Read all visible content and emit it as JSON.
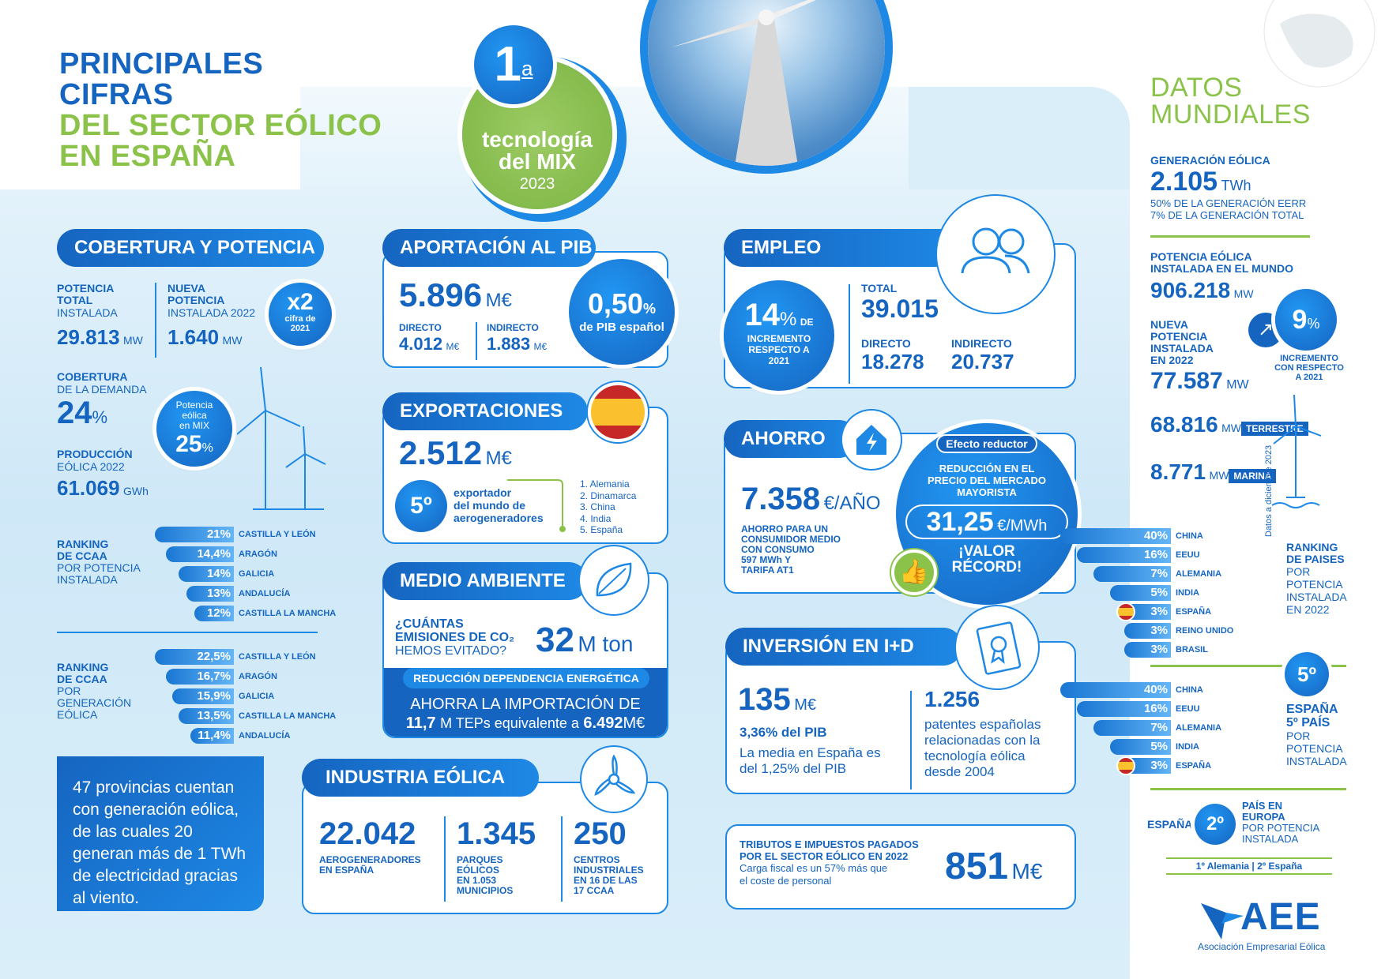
{
  "title": {
    "l1": "PRINCIPALES",
    "l2": "CIFRAS",
    "l3": "DEL SECTOR EÓLICO",
    "l4": "EN ESPAÑA"
  },
  "badge": {
    "num": "1",
    "sup": "a",
    "l1": "tecnología",
    "l2": "del MIX",
    "year": "2023"
  },
  "cobertura": {
    "pill": "COBERTURA Y POTENCIA",
    "pt_l1": "POTENCIA",
    "pt_l2": "TOTAL",
    "pt_l3": "INSTALADA",
    "pt_val": "29.813",
    "pt_unit": "MW",
    "np_l1": "NUEVA",
    "np_l2": "POTENCIA",
    "np_l3": "INSTALADA 2022",
    "np_val": "1.640",
    "np_unit": "MW",
    "x2": "x2",
    "x2_l1": "cifra de",
    "x2_l2": "2021",
    "cd_l1": "COBERTURA",
    "cd_l2": "DE LA DEMANDA",
    "cd_val": "24",
    "cd_unit": "%",
    "pe_l1": "Potencia",
    "pe_l2": "eólica",
    "pe_l3": "en MIX",
    "pe_val": "25",
    "pe_unit": "%",
    "pr_l1": "PRODUCCIÓN",
    "pr_l2": "EÓLICA 2022",
    "pr_val": "61.069",
    "pr_unit": "GWh"
  },
  "rank_pot": {
    "l1": "RANKING",
    "l2": "DE CCAA",
    "l3": "POR POTENCIA",
    "l4": "INSTALADA",
    "items": [
      {
        "v": "21%",
        "n": "CASTILLA Y LEÓN",
        "f": 1.0
      },
      {
        "v": "14,4%",
        "n": "ARAGÓN",
        "f": 0.86
      },
      {
        "v": "14%",
        "n": "GALICIA",
        "f": 0.7
      },
      {
        "v": "13%",
        "n": "ANDALUCÍA",
        "f": 0.6
      },
      {
        "v": "12%",
        "n": "CASTILLA LA MANCHA",
        "f": 0.5
      }
    ]
  },
  "rank_gen": {
    "l1": "RANKING",
    "l2": "DE CCAA",
    "l3": "POR",
    "l4": "GENERACIÓN",
    "l5": "EÓLICA",
    "items": [
      {
        "v": "22,5%",
        "n": "CASTILLA Y LEÓN",
        "f": 1.0
      },
      {
        "v": "16,7%",
        "n": "ARAGÓN",
        "f": 0.86
      },
      {
        "v": "15,9%",
        "n": "GALICIA",
        "f": 0.78
      },
      {
        "v": "13,5%",
        "n": "CASTILLA LA MANCHA",
        "f": 0.7
      },
      {
        "v": "11,4%",
        "n": "ANDALUCÍA",
        "f": 0.55
      }
    ]
  },
  "provincias": {
    "text": "47 provincias cuentan con generación eólica, de las cuales 20 generan más de 1 TWh de electricidad gracias al viento."
  },
  "pib": {
    "pill": "APORTACIÓN AL PIB",
    "val": "5.896",
    "unit": "M€",
    "d_l": "DIRECTO",
    "d_v": "4.012",
    "d_u": "M€",
    "i_l": "INDIRECTO",
    "i_v": "1.883",
    "i_u": "M€",
    "pct": "0,50",
    "pct_u": "%",
    "pct_l": "de PIB español"
  },
  "export": {
    "pill": "EXPORTACIONES",
    "val": "2.512",
    "unit": "M€",
    "rank": "5º",
    "r_l1": "exportador",
    "r_l2": "del mundo de",
    "r_l3": "aerogeneradores",
    "list": [
      "1. Alemania",
      "2. Dinamarca",
      "3. China",
      "4. India",
      "5. España"
    ]
  },
  "medio": {
    "pill": "MEDIO AMBIENTE",
    "q1": "¿CUÁNTAS",
    "q2": "EMISIONES DE CO₂",
    "q3": "HEMOS EVITADO?",
    "val": "32",
    "unit": "M ton",
    "red": "REDUCCIÓN DEPENDENCIA ENERGÉTICA",
    "ah1": "AHORRA LA IMPORTACIÓN DE",
    "ah_v1": "11,7",
    "ah_m": "M TEPs equivalente a",
    "ah_v2": "6.492",
    "ah_u": "M€"
  },
  "industria": {
    "pill": "INDUSTRIA EÓLICA",
    "a_v": "22.042",
    "a_l1": "AEROGENERADORES",
    "a_l2": "EN ESPAÑA",
    "p_v": "1.345",
    "p_l1": "PARQUES",
    "p_l2": "EÓLICOS",
    "p_l3": "EN 1.053",
    "p_l4": "MUNICIPIOS",
    "c_v": "250",
    "c_l1": "CENTROS",
    "c_l2": "INDUSTRIALES",
    "c_l3": "EN 16 DE LAS",
    "c_l4": "17 CCAA"
  },
  "empleo": {
    "pill": "EMPLEO",
    "pct": "14",
    "pct_u": "%",
    "pct_de": "DE",
    "c_l1": "INCREMENTO",
    "c_l2": "RESPECTO A",
    "c_l3": "2021",
    "t_l": "TOTAL",
    "t_v": "39.015",
    "d_l": "DIRECTO",
    "d_v": "18.278",
    "i_l": "INDIRECTO",
    "i_v": "20.737"
  },
  "ahorro": {
    "pill": "AHORRO",
    "val": "7.358",
    "unit": "€/AÑO",
    "l1": "AHORRO PARA UN",
    "l2": "CONSUMIDOR MEDIO",
    "l3": "CON CONSUMO",
    "l4": "597 MWh Y",
    "l5": "TARIFA AT1",
    "ef": "Efecto reductor",
    "r1": "REDUCCIÓN EN EL",
    "r2": "PRECIO DEL MERCADO",
    "r3": "MAYORISTA",
    "rv": "31,25",
    "ru": "€/MWh",
    "rec1": "¡VALOR",
    "rec2": "RÉCORD!"
  },
  "id": {
    "pill": "INVERSIÓN EN I+D",
    "val": "135",
    "unit": "M€",
    "pct": "3,36% del PIB",
    "m1": "La media en España es",
    "m2": "del 1,25% del PIB",
    "pat_v": "1.256",
    "p1": "patentes españolas",
    "p2": "relacionadas con la",
    "p3": "tecnología eólica",
    "p4": "desde 2004"
  },
  "tributos": {
    "t1": "TRIBUTOS E IMPUESTOS PAGADOS",
    "t2": "POR EL SECTOR EÓLICO EN 2022",
    "c1": "Carga fiscal es un 57% más que",
    "c2": "el coste de personal",
    "val": "851",
    "unit": "M€"
  },
  "mundo": {
    "t1": "DATOS",
    "t2": "MUNDIALES",
    "g_l": "GENERACIÓN EÓLICA",
    "g_v": "2.105",
    "g_u": "TWh",
    "g_1": "50% DE LA GENERACIÓN EERR",
    "g_2": "7% DE LA GENERACIÓN TOTAL",
    "p_l1": "POTENCIA EÓLICA",
    "p_l2": "INSTALADA EN EL MUNDO",
    "p_v": "906.218",
    "p_u": "MW",
    "n_l1": "NUEVA",
    "n_l2": "POTENCIA",
    "n_l3": "INSTALADA",
    "n_l4": "EN 2022",
    "n_v": "77.587",
    "n_u": "MW",
    "inc": "9",
    "inc_u": "%",
    "inc_l1": "INCREMENTO",
    "inc_l2": "CON RESPECTO",
    "inc_l3": "A 2021",
    "t_v": "68.816",
    "t_u": "MW",
    "t_l": "TERRESTRE",
    "m_v": "8.771",
    "m_u": "MW",
    "m_l": "MARINA",
    "date": "Datos a diciembre 2023"
  },
  "rank_paises": {
    "l1": "RANKING",
    "l2": "DE PAISES",
    "l3": "POR",
    "l4": "POTENCIA",
    "l5": "INSTALADA",
    "l6": "EN 2022",
    "items": [
      {
        "v": "40%",
        "n": "CHINA",
        "f": 1.0
      },
      {
        "v": "16%",
        "n": "EEUU",
        "f": 0.85
      },
      {
        "v": "7%",
        "n": "ALEMANIA",
        "f": 0.7
      },
      {
        "v": "5%",
        "n": "INDIA",
        "f": 0.55
      },
      {
        "v": "3%",
        "n": "ESPAÑA",
        "f": 0.42
      },
      {
        "v": "3%",
        "n": "REINO UNIDO",
        "f": 0.42
      },
      {
        "v": "3%",
        "n": "BRASIL",
        "f": 0.42
      }
    ]
  },
  "rank_esp": {
    "num": "5º",
    "l1": "ESPAÑA",
    "l2": "5º PAÍS",
    "l3": "POR",
    "l4": "POTENCIA",
    "l5": "INSTALADA",
    "items": [
      {
        "v": "40%",
        "n": "CHINA",
        "f": 1.0
      },
      {
        "v": "16%",
        "n": "EEUU",
        "f": 0.85
      },
      {
        "v": "7%",
        "n": "ALEMANIA",
        "f": 0.7
      },
      {
        "v": "5%",
        "n": "INDIA",
        "f": 0.55
      },
      {
        "v": "3%",
        "n": "ESPAÑA",
        "f": 0.42
      }
    ]
  },
  "europa": {
    "esp": "ESPAÑA",
    "num": "2º",
    "l1": "PAÍS EN",
    "l2": "EUROPA",
    "l3": "POR POTENCIA",
    "l4": "INSTALADA",
    "foot": "1º Alemania | 2º España"
  },
  "logo": {
    "name": "AEE",
    "sub": "Asociación Empresarial Eólica"
  },
  "colors": {
    "blue": "#1565c0",
    "accent": "#1e88e5",
    "green": "#8bc34a",
    "flag_red": "#c62828",
    "flag_yellow": "#fbc02d"
  }
}
